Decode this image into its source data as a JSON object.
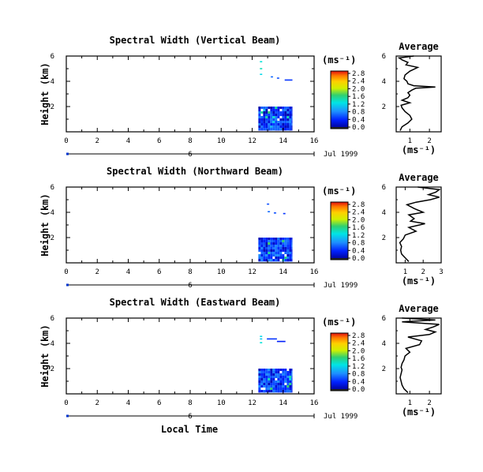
{
  "figure": {
    "date_label": "Jul 1999",
    "bottom_xlabel": "Local Time",
    "marker_label": "6"
  },
  "chart_data": [
    {
      "type": "heatmap",
      "title": "Spectral Width (Vertical Beam)",
      "ylabel": "Height (km)",
      "xlim": [
        0,
        16
      ],
      "ylim": [
        0,
        6
      ],
      "x_ticks": [
        0,
        2,
        4,
        6,
        8,
        10,
        12,
        14,
        16
      ],
      "y_ticks": [
        2,
        4,
        6
      ],
      "colorbar": {
        "unit": "(ms⁻¹)",
        "ticks": [
          "0.0",
          "0.4",
          "0.8",
          "1.2",
          "1.6",
          "2.0",
          "2.4",
          "2.8"
        ],
        "range": [
          0,
          2.8
        ]
      },
      "blocks": [
        {
          "x": [
            12.4,
            14.6
          ],
          "y": [
            0.1,
            2.0
          ],
          "level": 0.45
        },
        {
          "x": [
            12.5,
            12.65
          ],
          "y": [
            5.5,
            5.6
          ],
          "level": 1.3
        },
        {
          "x": [
            12.5,
            12.65
          ],
          "y": [
            4.95,
            5.05
          ],
          "level": 1.4
        },
        {
          "x": [
            12.5,
            12.65
          ],
          "y": [
            4.5,
            4.6
          ],
          "level": 1.2
        },
        {
          "x": [
            13.2,
            13.35
          ],
          "y": [
            4.3,
            4.4
          ],
          "level": 0.7
        },
        {
          "x": [
            13.6,
            13.75
          ],
          "y": [
            4.2,
            4.3
          ],
          "level": 0.6
        },
        {
          "x": [
            14.1,
            14.6
          ],
          "y": [
            4.05,
            4.15
          ],
          "level": 0.5
        }
      ],
      "average": {
        "title": "Average",
        "xlabel": "(ms⁻¹)",
        "xlim": [
          0.3,
          2.6
        ],
        "ylim": [
          0,
          6
        ],
        "x_ticks": [
          1,
          2
        ],
        "y_ticks": [
          2,
          4,
          6
        ],
        "profile": [
          [
            0.5,
            0.1
          ],
          [
            0.6,
            0.4
          ],
          [
            0.9,
            0.7
          ],
          [
            1.1,
            1.0
          ],
          [
            1.0,
            1.3
          ],
          [
            0.75,
            1.6
          ],
          [
            0.6,
            1.9
          ],
          [
            0.55,
            2.1
          ],
          [
            1.0,
            2.3
          ],
          [
            0.6,
            2.5
          ],
          [
            0.9,
            2.7
          ],
          [
            1.0,
            2.9
          ],
          [
            0.9,
            3.1
          ],
          [
            1.1,
            3.3
          ],
          [
            1.3,
            3.45
          ],
          [
            2.3,
            3.55
          ],
          [
            1.2,
            3.65
          ],
          [
            0.9,
            3.8
          ],
          [
            0.85,
            4.0
          ],
          [
            0.7,
            4.2
          ],
          [
            0.75,
            4.5
          ],
          [
            1.0,
            4.8
          ],
          [
            1.4,
            5.1
          ],
          [
            0.8,
            5.3
          ],
          [
            0.9,
            5.5
          ],
          [
            0.6,
            5.7
          ],
          [
            0.45,
            5.85
          ],
          [
            1.2,
            6.0
          ]
        ]
      }
    },
    {
      "type": "heatmap",
      "title": "Spectral Width (Northward Beam)",
      "ylabel": "Height (km)",
      "xlim": [
        0,
        16
      ],
      "ylim": [
        0,
        6
      ],
      "x_ticks": [
        0,
        2,
        4,
        6,
        8,
        10,
        12,
        14,
        16
      ],
      "y_ticks": [
        2,
        4,
        6
      ],
      "colorbar": {
        "unit": "(ms⁻¹)",
        "ticks": [
          "0.0",
          "0.4",
          "0.8",
          "1.2",
          "1.6",
          "2.0",
          "2.4",
          "2.8"
        ],
        "range": [
          0,
          2.8
        ]
      },
      "blocks": [
        {
          "x": [
            12.4,
            14.6
          ],
          "y": [
            0.1,
            2.0
          ],
          "level": 0.5
        },
        {
          "x": [
            12.95,
            13.1
          ],
          "y": [
            4.6,
            4.7
          ],
          "level": 0.6
        },
        {
          "x": [
            13.0,
            13.15
          ],
          "y": [
            4.0,
            4.1
          ],
          "level": 0.7
        },
        {
          "x": [
            13.4,
            13.55
          ],
          "y": [
            3.9,
            4.0
          ],
          "level": 0.6
        },
        {
          "x": [
            14.0,
            14.15
          ],
          "y": [
            3.85,
            3.95
          ],
          "level": 0.5
        }
      ],
      "average": {
        "title": "Average",
        "xlabel": "(ms⁻¹)",
        "xlim": [
          0.5,
          3.0
        ],
        "ylim": [
          0,
          6
        ],
        "x_ticks": [
          1,
          2,
          3
        ],
        "y_ticks": [
          2,
          4,
          6
        ],
        "profile": [
          [
            1.2,
            0.1
          ],
          [
            1.0,
            0.4
          ],
          [
            0.8,
            0.7
          ],
          [
            0.75,
            1.0
          ],
          [
            0.8,
            1.3
          ],
          [
            0.7,
            1.6
          ],
          [
            0.9,
            1.9
          ],
          [
            1.0,
            2.2
          ],
          [
            1.6,
            2.5
          ],
          [
            1.2,
            2.8
          ],
          [
            2.1,
            3.1
          ],
          [
            1.3,
            3.3
          ],
          [
            1.5,
            3.5
          ],
          [
            1.2,
            3.8
          ],
          [
            2.0,
            4.0
          ],
          [
            1.5,
            4.3
          ],
          [
            1.1,
            4.6
          ],
          [
            1.6,
            4.8
          ],
          [
            2.4,
            5.0
          ],
          [
            2.9,
            5.2
          ],
          [
            2.3,
            5.4
          ],
          [
            2.7,
            5.6
          ],
          [
            2.9,
            5.8
          ],
          [
            1.7,
            6.0
          ]
        ]
      }
    },
    {
      "type": "heatmap",
      "title": "Spectral Width (Eastward Beam)",
      "ylabel": "Height (km)",
      "xlim": [
        0,
        16
      ],
      "ylim": [
        0,
        6
      ],
      "x_ticks": [
        0,
        2,
        4,
        6,
        8,
        10,
        12,
        14,
        16
      ],
      "y_ticks": [
        2,
        4,
        6
      ],
      "colorbar": {
        "unit": "(ms⁻¹)",
        "ticks": [
          "0.0",
          "0.4",
          "0.8",
          "1.2",
          "1.6",
          "2.0",
          "2.4",
          "2.8"
        ],
        "range": [
          0,
          2.8
        ]
      },
      "blocks": [
        {
          "x": [
            12.4,
            14.6
          ],
          "y": [
            0.1,
            2.0
          ],
          "level": 0.5
        },
        {
          "x": [
            12.5,
            12.65
          ],
          "y": [
            4.5,
            4.6
          ],
          "level": 1.2
        },
        {
          "x": [
            12.5,
            12.65
          ],
          "y": [
            4.0,
            4.1
          ],
          "level": 1.3
        },
        {
          "x": [
            12.5,
            12.65
          ],
          "y": [
            4.3,
            4.4
          ],
          "level": 1.1
        },
        {
          "x": [
            12.95,
            13.6
          ],
          "y": [
            4.3,
            4.4
          ],
          "level": 0.5
        },
        {
          "x": [
            13.6,
            14.15
          ],
          "y": [
            4.1,
            4.2
          ],
          "level": 0.4
        }
      ],
      "average": {
        "title": "Average",
        "xlabel": "(ms⁻¹)",
        "xlim": [
          0.3,
          2.6
        ],
        "ylim": [
          0,
          6
        ],
        "x_ticks": [
          1,
          2
        ],
        "y_ticks": [
          2,
          4,
          6
        ],
        "profile": [
          [
            0.9,
            0.1
          ],
          [
            0.7,
            0.4
          ],
          [
            0.6,
            0.7
          ],
          [
            0.55,
            1.0
          ],
          [
            0.5,
            1.3
          ],
          [
            0.55,
            1.6
          ],
          [
            0.6,
            1.9
          ],
          [
            0.55,
            2.1
          ],
          [
            0.6,
            2.4
          ],
          [
            0.7,
            2.7
          ],
          [
            0.75,
            3.0
          ],
          [
            1.0,
            3.3
          ],
          [
            0.8,
            3.6
          ],
          [
            1.5,
            3.9
          ],
          [
            1.6,
            4.2
          ],
          [
            0.9,
            4.5
          ],
          [
            2.0,
            4.7
          ],
          [
            2.3,
            4.9
          ],
          [
            1.8,
            5.1
          ],
          [
            2.2,
            5.3
          ],
          [
            2.5,
            5.5
          ],
          [
            0.6,
            5.7
          ],
          [
            2.3,
            5.85
          ],
          [
            0.6,
            6.0
          ]
        ]
      }
    }
  ]
}
